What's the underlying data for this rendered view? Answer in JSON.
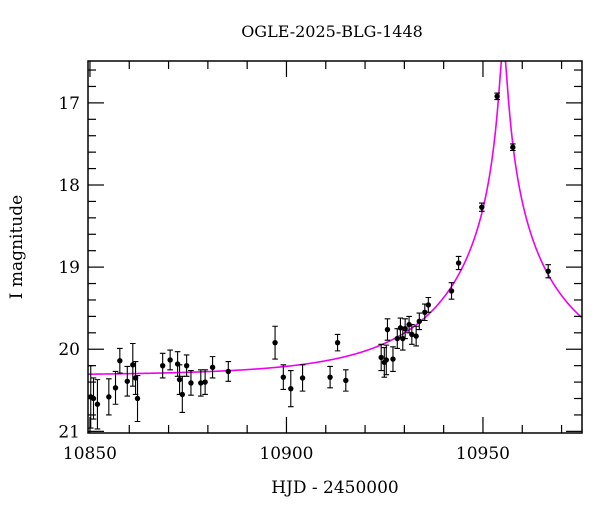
{
  "chart_data": {
    "type": "scatter",
    "title": "OGLE-2025-BLG-1448",
    "xlabel": "HJD - 2450000",
    "ylabel": "I magnitude",
    "xlim": [
      10849.5,
      10975.2
    ],
    "ylim_mag_bottom_to_top": [
      21.02,
      16.49
    ],
    "y_axis_inverted": true,
    "grid": false,
    "legend": null,
    "x_major_ticks": [
      10850,
      10900,
      10950
    ],
    "x_minor_step": 10,
    "y_major_ticks": [
      17,
      18,
      19,
      20,
      21
    ],
    "y_minor_step": 0.2,
    "background_color": "#ffffff",
    "frame_color": "#000000",
    "point_color": "#000000",
    "curve_color": "#f000f0",
    "points_format": [
      "hjd_minus_2450000",
      "I_mag",
      "I_mag_err"
    ],
    "points": [
      [
        10850.2,
        20.58,
        0.38
      ],
      [
        10850.9,
        20.6,
        0.25
      ],
      [
        10851.9,
        20.67,
        0.3
      ],
      [
        10854.8,
        20.58,
        0.22
      ],
      [
        10856.5,
        20.47,
        0.2
      ],
      [
        10857.6,
        20.14,
        0.15
      ],
      [
        10859.5,
        20.39,
        0.18
      ],
      [
        10860.9,
        20.19,
        0.26
      ],
      [
        10861.6,
        20.35,
        0.2
      ],
      [
        10862.1,
        20.6,
        0.28
      ],
      [
        10868.5,
        20.2,
        0.15
      ],
      [
        10870.4,
        20.13,
        0.12
      ],
      [
        10872.3,
        20.18,
        0.15
      ],
      [
        10872.8,
        20.37,
        0.18
      ],
      [
        10873.5,
        20.55,
        0.22
      ],
      [
        10874.6,
        20.2,
        0.13
      ],
      [
        10875.7,
        20.41,
        0.15
      ],
      [
        10878.2,
        20.41,
        0.16
      ],
      [
        10879.3,
        20.4,
        0.15
      ],
      [
        10881.2,
        20.22,
        0.13
      ],
      [
        10885.2,
        20.27,
        0.12
      ],
      [
        10897.1,
        19.92,
        0.2
      ],
      [
        10899.2,
        20.34,
        0.15
      ],
      [
        10901.1,
        20.48,
        0.22
      ],
      [
        10904.1,
        20.35,
        0.16
      ],
      [
        10911.1,
        20.34,
        0.13
      ],
      [
        10913.0,
        19.92,
        0.1
      ],
      [
        10915.1,
        20.38,
        0.13
      ],
      [
        10924.1,
        20.1,
        0.16
      ],
      [
        10924.9,
        20.16,
        0.18
      ],
      [
        10925.4,
        20.13,
        0.18
      ],
      [
        10925.7,
        19.76,
        0.13
      ],
      [
        10927.1,
        20.12,
        0.15
      ],
      [
        10928.2,
        19.87,
        0.12
      ],
      [
        10929.0,
        19.74,
        0.12
      ],
      [
        10929.6,
        19.87,
        0.14
      ],
      [
        10930.2,
        19.75,
        0.12
      ],
      [
        10931.2,
        19.7,
        0.1
      ],
      [
        10931.9,
        19.82,
        0.12
      ],
      [
        10933.0,
        19.84,
        0.12
      ],
      [
        10933.8,
        19.66,
        0.1
      ],
      [
        10935.2,
        19.55,
        0.1
      ],
      [
        10936.1,
        19.46,
        0.09
      ],
      [
        10942.0,
        19.29,
        0.1
      ],
      [
        10943.8,
        18.95,
        0.08
      ],
      [
        10949.7,
        18.27,
        0.05
      ],
      [
        10953.6,
        16.92,
        0.04
      ],
      [
        10957.6,
        17.54,
        0.04
      ],
      [
        10966.6,
        19.05,
        0.08
      ]
    ],
    "model_curve": {
      "type": "paczynski_microlensing",
      "t0": 10955.2,
      "tE_days": 34,
      "u0": 0.025,
      "baseline_I_mag": 20.32
    }
  }
}
